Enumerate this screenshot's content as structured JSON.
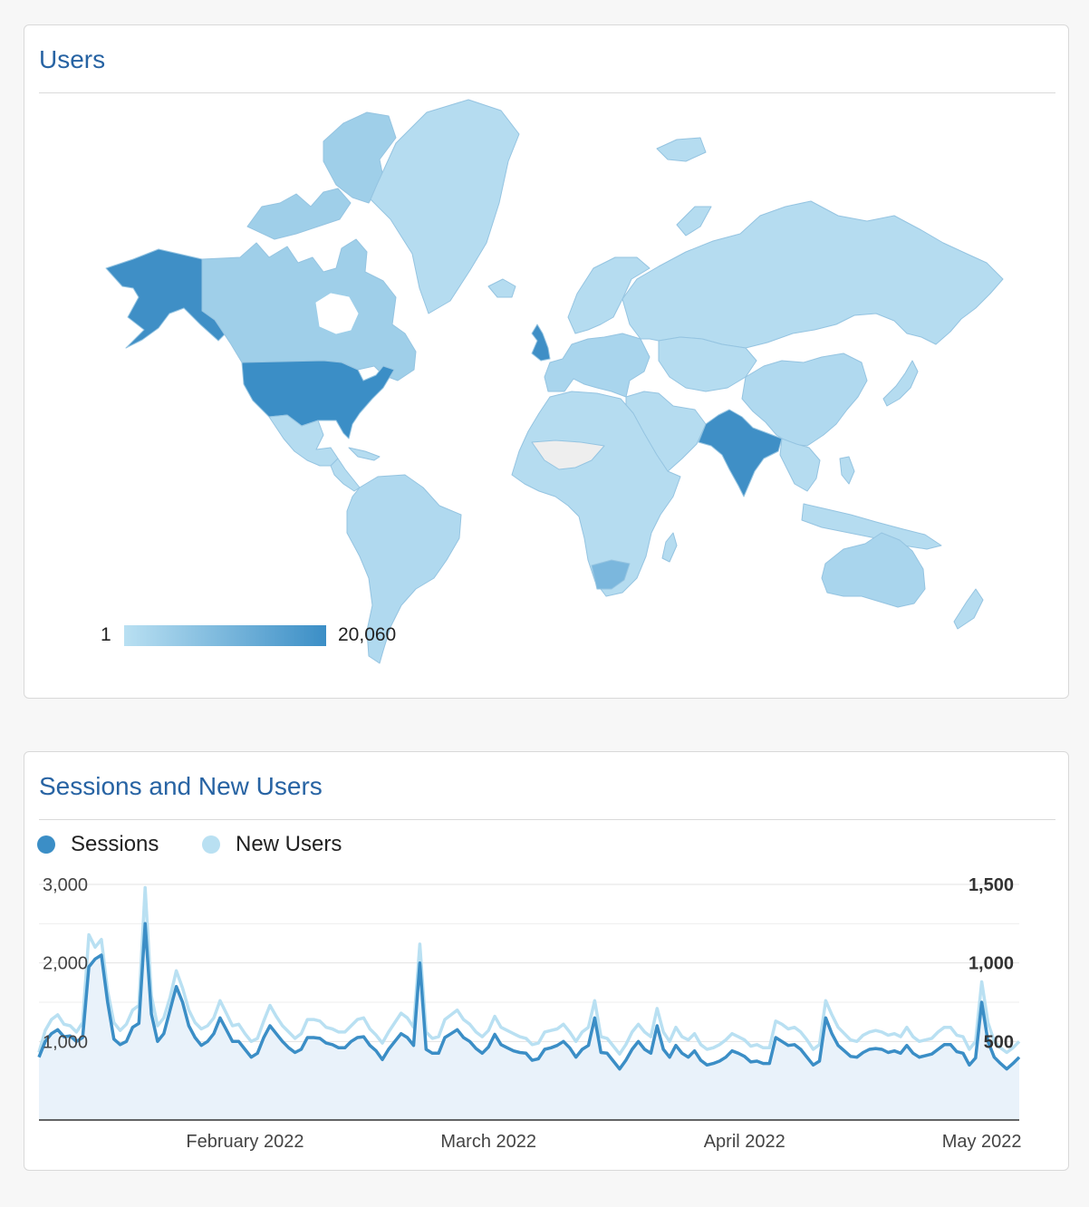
{
  "map_card": {
    "title": "Users",
    "legend_min": "1",
    "legend_max": "20,060",
    "color_low": "#b9e0f2",
    "color_high": "#3b8ec6",
    "no_data_color": "#eeeeee"
  },
  "chart_card": {
    "title": "Sessions and New Users"
  },
  "chart_data": {
    "type": "line",
    "series": [
      {
        "name": "Sessions",
        "axis": "left",
        "color": "#3b8ec6",
        "values": [
          800,
          1000,
          1100,
          1150,
          1060,
          1070,
          1000,
          1050,
          1950,
          2050,
          2100,
          1500,
          1030,
          960,
          1000,
          1180,
          1230,
          2500,
          1350,
          1000,
          1100,
          1400,
          1700,
          1500,
          1200,
          1050,
          950,
          1000,
          1100,
          1300,
          1150,
          1000,
          1000,
          900,
          800,
          850,
          1050,
          1200,
          1100,
          1000,
          920,
          860,
          900,
          1050,
          1050,
          1040,
          980,
          960,
          920,
          920,
          1000,
          1050,
          1060,
          950,
          880,
          770,
          900,
          1000,
          1100,
          1050,
          950,
          2000,
          900,
          850,
          850,
          1050,
          1100,
          1150,
          1050,
          1000,
          910,
          850,
          930,
          1090,
          960,
          920,
          880,
          860,
          850,
          760,
          780,
          900,
          920,
          950,
          1000,
          920,
          800,
          900,
          950,
          1300,
          860,
          850,
          750,
          650,
          760,
          900,
          1000,
          900,
          850,
          1200,
          900,
          800,
          950,
          850,
          800,
          880,
          760,
          700,
          720,
          750,
          800,
          880,
          850,
          810,
          740,
          750,
          720,
          720,
          1050,
          1000,
          950,
          960,
          900,
          800,
          700,
          750,
          1300,
          1100,
          950,
          880,
          810,
          800,
          860,
          900,
          910,
          900,
          860,
          880,
          850,
          950,
          850,
          800,
          820,
          840,
          900,
          960,
          960,
          870,
          850,
          700,
          790,
          1500,
          1000,
          800,
          720,
          650,
          720,
          800
        ]
      },
      {
        "name": "New Users",
        "axis": "right",
        "color": "#b9e0f2",
        "values": [
          430,
          570,
          640,
          670,
          610,
          600,
          560,
          620,
          1180,
          1100,
          1150,
          820,
          620,
          570,
          610,
          700,
          730,
          1480,
          790,
          600,
          650,
          780,
          950,
          840,
          700,
          620,
          580,
          600,
          650,
          760,
          680,
          600,
          610,
          550,
          500,
          520,
          630,
          730,
          660,
          600,
          560,
          520,
          550,
          640,
          640,
          630,
          590,
          580,
          560,
          560,
          600,
          640,
          650,
          580,
          540,
          490,
          560,
          620,
          680,
          650,
          590,
          1120,
          560,
          520,
          530,
          640,
          670,
          700,
          640,
          610,
          560,
          530,
          570,
          660,
          590,
          570,
          550,
          530,
          520,
          480,
          490,
          560,
          570,
          580,
          610,
          560,
          500,
          560,
          590,
          760,
          530,
          520,
          470,
          420,
          480,
          560,
          610,
          560,
          530,
          710,
          560,
          500,
          590,
          530,
          510,
          550,
          480,
          450,
          460,
          480,
          510,
          550,
          530,
          510,
          470,
          480,
          460,
          460,
          630,
          610,
          580,
          590,
          560,
          510,
          450,
          480,
          760,
          670,
          590,
          550,
          510,
          500,
          540,
          560,
          570,
          560,
          540,
          550,
          530,
          590,
          530,
          500,
          510,
          520,
          560,
          590,
          590,
          540,
          530,
          450,
          500,
          880,
          620,
          500,
          460,
          430,
          460,
          500
        ]
      }
    ],
    "x_tick_labels": [
      "February 2022",
      "March 2022",
      "April 2022",
      "May 2022"
    ],
    "x_tick_index": [
      33,
      72,
      113,
      151
    ],
    "left_axis": {
      "ticks": [
        "3,000",
        "2,000",
        "1,000"
      ],
      "values": [
        3000,
        2000,
        1000
      ],
      "ylim": [
        0,
        3000
      ]
    },
    "right_axis": {
      "ticks": [
        "1,500",
        "1,000",
        "500"
      ],
      "values": [
        1500,
        1000,
        500
      ],
      "ylim": [
        0,
        1500
      ]
    },
    "legend_position": "top-left",
    "grid": true
  }
}
